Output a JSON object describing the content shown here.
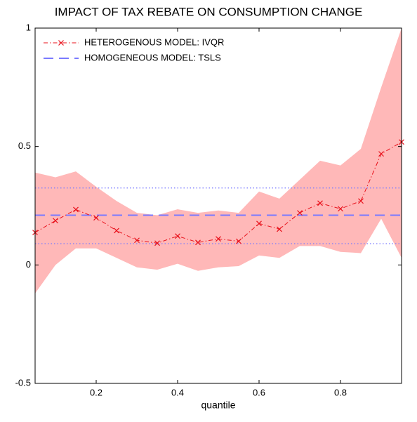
{
  "chart_data": {
    "type": "line",
    "title": "IMPACT OF TAX REBATE ON CONSUMPTION CHANGE",
    "xlabel": "quantile",
    "x": [
      0.05,
      0.1,
      0.15,
      0.2,
      0.25,
      0.3,
      0.35,
      0.4,
      0.45,
      0.5,
      0.55,
      0.6,
      0.65,
      0.7,
      0.75,
      0.8,
      0.85,
      0.9,
      0.95
    ],
    "series": [
      {
        "name": "HETEROGENOUS MODEL: IVQR",
        "color": "#e8101a",
        "band_color": "#ffb8b8",
        "values": [
          0.137,
          0.187,
          0.234,
          0.199,
          0.145,
          0.104,
          0.092,
          0.122,
          0.095,
          0.11,
          0.1,
          0.175,
          0.151,
          0.22,
          0.261,
          0.237,
          0.27,
          0.469,
          0.519
        ],
        "upper": [
          0.39,
          0.37,
          0.395,
          0.33,
          0.27,
          0.22,
          0.21,
          0.235,
          0.22,
          0.23,
          0.22,
          0.31,
          0.28,
          0.36,
          0.44,
          0.42,
          0.49,
          0.75,
          1.0
        ],
        "lower": [
          -0.12,
          0.0,
          0.07,
          0.07,
          0.03,
          -0.01,
          -0.02,
          0.005,
          -0.025,
          -0.01,
          -0.005,
          0.04,
          0.03,
          0.08,
          0.08,
          0.055,
          0.05,
          0.195,
          0.03
        ]
      },
      {
        "name": "HOMOGENEOUS MODEL: TSLS",
        "color": "#7a7aff",
        "level": 0.21,
        "ci": [
          0.09,
          0.325
        ]
      }
    ],
    "xlim": [
      0.05,
      0.95
    ],
    "ylim": [
      -0.5,
      1
    ],
    "xticks": [
      0.2,
      0.4,
      0.6,
      0.8
    ],
    "yticks": [
      -0.5,
      0,
      0.5,
      1
    ],
    "legend": "upper left"
  }
}
